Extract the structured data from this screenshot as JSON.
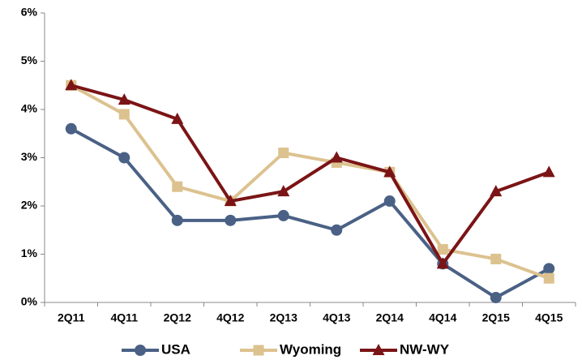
{
  "chart_data": {
    "type": "line",
    "categories": [
      "2Q11",
      "4Q11",
      "2Q12",
      "4Q12",
      "2Q13",
      "4Q13",
      "2Q14",
      "4Q14",
      "2Q15",
      "4Q15"
    ],
    "series": [
      {
        "name": "USA",
        "color": "#4a6185",
        "marker": "circle",
        "values": [
          3.6,
          3.0,
          1.7,
          1.7,
          1.8,
          1.5,
          2.1,
          0.8,
          0.1,
          0.7
        ]
      },
      {
        "name": "Wyoming",
        "color": "#dcc28f",
        "marker": "square",
        "values": [
          4.5,
          3.9,
          2.4,
          2.1,
          3.1,
          2.9,
          2.7,
          1.1,
          0.9,
          0.5
        ]
      },
      {
        "name": "NW-WY",
        "color": "#7b1416",
        "marker": "triangle",
        "values": [
          4.5,
          4.2,
          3.8,
          2.1,
          2.3,
          3.0,
          2.7,
          0.8,
          2.3,
          2.7
        ]
      }
    ],
    "ylim": [
      0,
      6
    ],
    "yticks": [
      {
        "value": 0,
        "label": "0%"
      },
      {
        "value": 1,
        "label": "1%"
      },
      {
        "value": 2,
        "label": "2%"
      },
      {
        "value": 3,
        "label": "3%"
      },
      {
        "value": 4,
        "label": "4%"
      },
      {
        "value": 5,
        "label": "5%"
      },
      {
        "value": 6,
        "label": "6%"
      }
    ],
    "grid": false,
    "legend": "bottom"
  }
}
